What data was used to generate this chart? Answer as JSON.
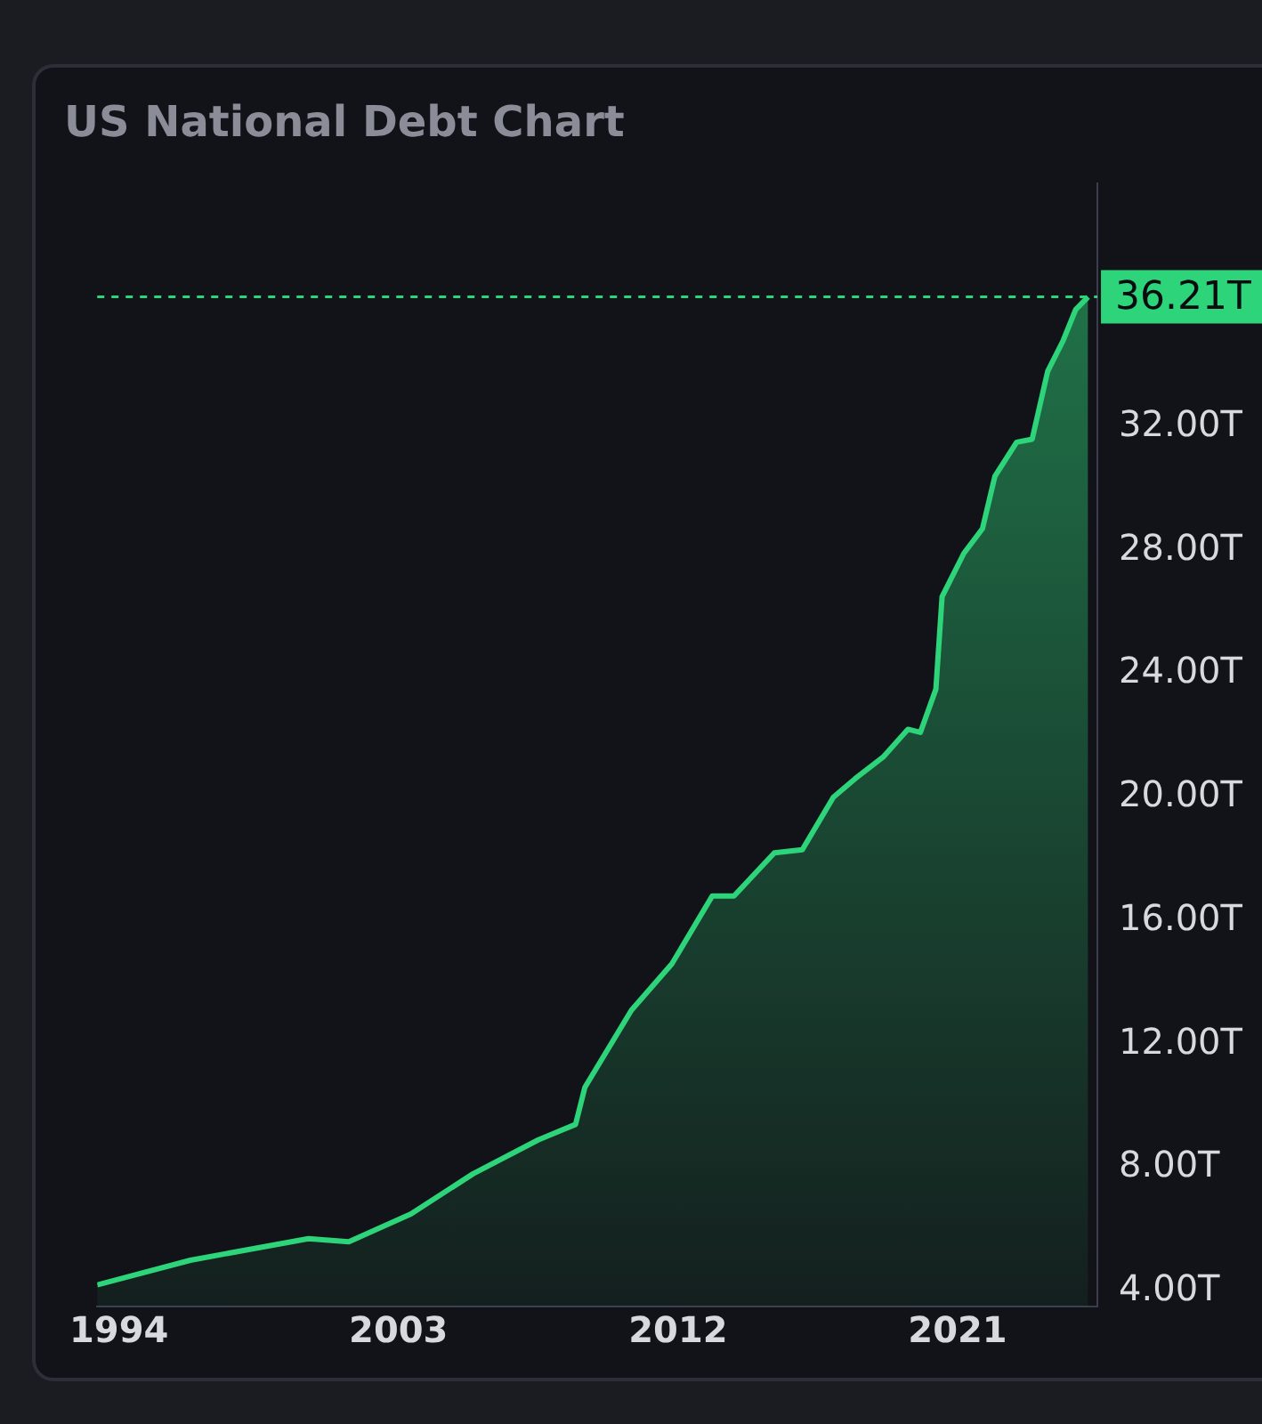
{
  "chart_data": {
    "type": "area",
    "title": "US National Debt Chart",
    "x": [
      1993.3,
      1996.3,
      2000.1,
      2001.4,
      2003.4,
      2005.4,
      2007.5,
      2008.7,
      2009.0,
      2010.5,
      2011.8,
      2013.1,
      2013.8,
      2015.1,
      2016.0,
      2017.0,
      2017.7,
      2018.6,
      2019.4,
      2019.8,
      2020.3,
      2020.5,
      2021.2,
      2021.8,
      2022.2,
      2022.9,
      2023.4,
      2023.9,
      2024.4,
      2024.8,
      2025.2
    ],
    "series": [
      {
        "color": "#2ed47a",
        "values": [
          4.2,
          5.0,
          5.7,
          5.6,
          6.5,
          7.8,
          8.9,
          9.4,
          10.6,
          13.1,
          14.6,
          16.8,
          16.8,
          18.2,
          18.3,
          20.0,
          20.6,
          21.3,
          22.2,
          22.1,
          23.5,
          26.5,
          27.9,
          28.7,
          30.4,
          31.5,
          31.6,
          33.8,
          34.8,
          35.8,
          36.21
        ]
      }
    ],
    "xlim": [
      1993.3,
      2025.5
    ],
    "xticks": [
      1994,
      2003,
      2012,
      2021
    ],
    "ylim": [
      3.5,
      39.9
    ],
    "yticks": [
      {
        "value": 4,
        "label": "4.00T"
      },
      {
        "value": 8,
        "label": "8.00T"
      },
      {
        "value": 12,
        "label": "12.00T"
      },
      {
        "value": 16,
        "label": "16.00T"
      },
      {
        "value": 20,
        "label": "20.00T"
      },
      {
        "value": 24,
        "label": "24.00T"
      },
      {
        "value": 28,
        "label": "28.00T"
      },
      {
        "value": 32,
        "label": "32.00T"
      }
    ],
    "ref_lines": [
      {
        "axis": "y",
        "value": 36.21,
        "label": "36.21T",
        "color": "#2ed47a",
        "line_style": "dashed"
      }
    ],
    "grid": false,
    "legend": false,
    "marker": "none",
    "line_style": "solid"
  }
}
